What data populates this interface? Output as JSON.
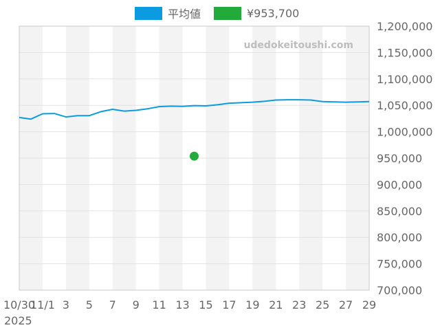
{
  "watermark": "udedokeitoushi.com",
  "colors": {
    "average": "#0a9be0",
    "price": "#22aa3a",
    "band": "#f3f3f3",
    "grid": "#e2e2e2",
    "axis": "#c9c9c9",
    "text": "#666666"
  },
  "chart_data": {
    "type": "line",
    "legend_position": "top",
    "grid": true,
    "y_tick_labels": [
      "1,200,000",
      "1,150,000",
      "1,100,000",
      "1,050,000",
      "1,000,000",
      "950,000",
      "900,000",
      "850,000",
      "800,000",
      "750,000",
      "700,000"
    ],
    "y_ticks": [
      1200000,
      1150000,
      1100000,
      1050000,
      1000000,
      950000,
      900000,
      850000,
      800000,
      750000,
      700000
    ],
    "ylim": [
      700000,
      1200000
    ],
    "x_tick_labels": [
      "10/30",
      "11/1",
      "3",
      "5",
      "7",
      "9",
      "11",
      "13",
      "15",
      "17",
      "19",
      "21",
      "23",
      "25",
      "27",
      "29"
    ],
    "x_year_label": "2025",
    "x_dates": [
      "2025-10-30",
      "2025-10-31",
      "2025-11-01",
      "2025-11-02",
      "2025-11-03",
      "2025-11-04",
      "2025-11-05",
      "2025-11-06",
      "2025-11-07",
      "2025-11-08",
      "2025-11-09",
      "2025-11-10",
      "2025-11-11",
      "2025-11-12",
      "2025-11-13",
      "2025-11-14",
      "2025-11-15",
      "2025-11-16",
      "2025-11-17",
      "2025-11-18",
      "2025-11-19",
      "2025-11-20",
      "2025-11-21",
      "2025-11-22",
      "2025-11-23",
      "2025-11-24",
      "2025-11-25",
      "2025-11-26",
      "2025-11-27",
      "2025-11-28",
      "2025-11-29"
    ],
    "series": [
      {
        "name": "平均値",
        "type": "line",
        "values": [
          1027000,
          1024000,
          1034000,
          1034500,
          1028000,
          1030500,
          1030500,
          1038000,
          1042500,
          1039000,
          1040500,
          1043500,
          1047500,
          1048500,
          1048000,
          1049500,
          1049000,
          1051000,
          1054000,
          1055000,
          1056000,
          1057500,
          1060000,
          1060500,
          1060500,
          1060000,
          1057000,
          1056500,
          1056000,
          1056500,
          1057000
        ]
      },
      {
        "name": "¥953,700",
        "type": "scatter",
        "points": [
          {
            "x": "2025-11-14",
            "y": 953700
          }
        ]
      }
    ]
  }
}
